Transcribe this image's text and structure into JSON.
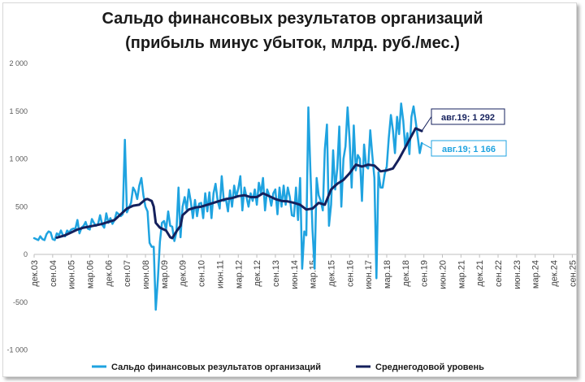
{
  "chart_data": {
    "type": "line",
    "title_line1": "Сальдо финансовых результатов организаций",
    "title_line2": "(прибыль минус убыток, млрд. руб./мес.)",
    "xlabel": "",
    "ylabel": "",
    "ylim": [
      -1000,
      2000
    ],
    "y_ticks": [
      -1000,
      -500,
      0,
      500,
      1000,
      1500,
      2000
    ],
    "y_tick_labels": [
      "-1 000",
      "-500",
      "0",
      "500",
      "1 000",
      "1 500",
      "2 000"
    ],
    "x_ticks": [
      {
        "date": "2003-12",
        "label": "дек.03"
      },
      {
        "date": "2004-09",
        "label": "сен.04"
      },
      {
        "date": "2005-06",
        "label": "июн.05"
      },
      {
        "date": "2006-03",
        "label": "мар.06"
      },
      {
        "date": "2006-12",
        "label": "дек.06"
      },
      {
        "date": "2007-09",
        "label": "сен.07"
      },
      {
        "date": "2008-06",
        "label": "июн.08"
      },
      {
        "date": "2009-03",
        "label": "мар.09"
      },
      {
        "date": "2009-12",
        "label": "дек.09"
      },
      {
        "date": "2010-09",
        "label": "сен.10"
      },
      {
        "date": "2011-06",
        "label": "июн.11"
      },
      {
        "date": "2012-03",
        "label": "мар.12"
      },
      {
        "date": "2012-12",
        "label": "дек.12"
      },
      {
        "date": "2013-09",
        "label": "сен.13"
      },
      {
        "date": "2014-06",
        "label": "июн.14"
      },
      {
        "date": "2015-03",
        "label": "мар.15"
      },
      {
        "date": "2015-12",
        "label": "дек.15"
      },
      {
        "date": "2016-09",
        "label": "сен.16"
      },
      {
        "date": "2017-06",
        "label": "июн.17"
      },
      {
        "date": "2018-03",
        "label": "мар.18"
      },
      {
        "date": "2018-12",
        "label": "дек.18"
      },
      {
        "date": "2019-09",
        "label": "сен.19"
      },
      {
        "date": "2020-06",
        "label": "июн.20"
      },
      {
        "date": "2021-03",
        "label": "мар.21"
      },
      {
        "date": "2021-12",
        "label": "дек.21"
      },
      {
        "date": "2022-09",
        "label": "сен.22"
      },
      {
        "date": "2023-06",
        "label": "июн.23"
      },
      {
        "date": "2024-03",
        "label": "мар.24"
      },
      {
        "date": "2024-12",
        "label": "дек.24"
      },
      {
        "date": "2025-09",
        "label": "сен.25"
      }
    ],
    "x_range": [
      "2003-12",
      "2025-12"
    ],
    "grid": false,
    "legend_position": "bottom",
    "series": [
      {
        "name": "Сальдо финансовых результатов организаций",
        "color": "#1fa3e0",
        "points": [
          [
            "2003-12",
            170
          ],
          [
            "2004-02",
            150
          ],
          [
            "2004-03",
            190
          ],
          [
            "2004-04",
            160
          ],
          [
            "2004-05",
            150
          ],
          [
            "2004-06",
            210
          ],
          [
            "2004-07",
            240
          ],
          [
            "2004-08",
            230
          ],
          [
            "2004-09",
            160
          ],
          [
            "2004-10",
            150
          ],
          [
            "2004-11",
            220
          ],
          [
            "2004-12",
            200
          ],
          [
            "2005-01",
            250
          ],
          [
            "2005-02",
            200
          ],
          [
            "2005-03",
            190
          ],
          [
            "2005-04",
            250
          ],
          [
            "2005-05",
            230
          ],
          [
            "2005-06",
            260
          ],
          [
            "2005-07",
            270
          ],
          [
            "2005-08",
            270
          ],
          [
            "2005-09",
            360
          ],
          [
            "2005-10",
            220
          ],
          [
            "2005-11",
            280
          ],
          [
            "2005-12",
            300
          ],
          [
            "2006-01",
            340
          ],
          [
            "2006-02",
            270
          ],
          [
            "2006-03",
            260
          ],
          [
            "2006-04",
            370
          ],
          [
            "2006-05",
            330
          ],
          [
            "2006-06",
            300
          ],
          [
            "2006-07",
            320
          ],
          [
            "2006-08",
            410
          ],
          [
            "2006-09",
            310
          ],
          [
            "2006-10",
            280
          ],
          [
            "2006-11",
            430
          ],
          [
            "2006-12",
            330
          ],
          [
            "2007-01",
            380
          ],
          [
            "2007-02",
            320
          ],
          [
            "2007-03",
            360
          ],
          [
            "2007-04",
            440
          ],
          [
            "2007-05",
            420
          ],
          [
            "2007-06",
            400
          ],
          [
            "2007-07",
            420
          ],
          [
            "2007-08",
            1200
          ],
          [
            "2007-09",
            440
          ],
          [
            "2007-10",
            490
          ],
          [
            "2007-11",
            540
          ],
          [
            "2007-12",
            700
          ],
          [
            "2008-01",
            660
          ],
          [
            "2008-02",
            580
          ],
          [
            "2008-03",
            720
          ],
          [
            "2008-04",
            800
          ],
          [
            "2008-05",
            620
          ],
          [
            "2008-06",
            500
          ],
          [
            "2008-07",
            450
          ],
          [
            "2008-08",
            120
          ],
          [
            "2008-09",
            80
          ],
          [
            "2008-10",
            80
          ],
          [
            "2008-11",
            -580
          ],
          [
            "2008-12",
            -260
          ],
          [
            "2009-01",
            130
          ],
          [
            "2009-02",
            330
          ],
          [
            "2009-03",
            350
          ],
          [
            "2009-04",
            260
          ],
          [
            "2009-05",
            450
          ],
          [
            "2009-06",
            300
          ],
          [
            "2009-07",
            290
          ],
          [
            "2009-08",
            140
          ],
          [
            "2009-09",
            230
          ],
          [
            "2009-10",
            700
          ],
          [
            "2009-11",
            180
          ],
          [
            "2009-12",
            500
          ],
          [
            "2010-01",
            600
          ],
          [
            "2010-02",
            470
          ],
          [
            "2010-03",
            680
          ],
          [
            "2010-04",
            550
          ],
          [
            "2010-05",
            380
          ],
          [
            "2010-06",
            570
          ],
          [
            "2010-07",
            400
          ],
          [
            "2010-08",
            530
          ],
          [
            "2010-09",
            540
          ],
          [
            "2010-10",
            380
          ],
          [
            "2010-11",
            640
          ],
          [
            "2010-12",
            450
          ],
          [
            "2011-01",
            650
          ],
          [
            "2011-02",
            380
          ],
          [
            "2011-03",
            640
          ],
          [
            "2011-04",
            740
          ],
          [
            "2011-05",
            560
          ],
          [
            "2011-06",
            480
          ],
          [
            "2011-07",
            820
          ],
          [
            "2011-08",
            560
          ],
          [
            "2011-09",
            580
          ],
          [
            "2011-10",
            450
          ],
          [
            "2011-11",
            670
          ],
          [
            "2011-12",
            500
          ],
          [
            "2012-01",
            720
          ],
          [
            "2012-02",
            600
          ],
          [
            "2012-03",
            690
          ],
          [
            "2012-04",
            820
          ],
          [
            "2012-05",
            460
          ],
          [
            "2012-06",
            700
          ],
          [
            "2012-07",
            600
          ],
          [
            "2012-08",
            500
          ],
          [
            "2012-09",
            640
          ],
          [
            "2012-10",
            560
          ],
          [
            "2012-11",
            680
          ],
          [
            "2012-12",
            520
          ],
          [
            "2013-01",
            750
          ],
          [
            "2013-02",
            640
          ],
          [
            "2013-03",
            800
          ],
          [
            "2013-04",
            460
          ],
          [
            "2013-05",
            680
          ],
          [
            "2013-06",
            620
          ],
          [
            "2013-07",
            510
          ],
          [
            "2013-08",
            640
          ],
          [
            "2013-09",
            680
          ],
          [
            "2013-10",
            420
          ],
          [
            "2013-11",
            700
          ],
          [
            "2013-12",
            500
          ],
          [
            "2014-01",
            720
          ],
          [
            "2014-02",
            520
          ],
          [
            "2014-03",
            700
          ],
          [
            "2014-04",
            600
          ],
          [
            "2014-05",
            410
          ],
          [
            "2014-06",
            400
          ],
          [
            "2014-07",
            700
          ],
          [
            "2014-08",
            360
          ],
          [
            "2014-09",
            800
          ],
          [
            "2014-10",
            -150
          ],
          [
            "2014-11",
            240
          ],
          [
            "2014-12",
            200
          ],
          [
            "2015-01",
            1540
          ],
          [
            "2015-02",
            860
          ],
          [
            "2015-03",
            260
          ],
          [
            "2015-04",
            -150
          ],
          [
            "2015-05",
            800
          ],
          [
            "2015-06",
            620
          ],
          [
            "2015-07",
            560
          ],
          [
            "2015-08",
            460
          ],
          [
            "2015-09",
            1100
          ],
          [
            "2015-10",
            1360
          ],
          [
            "2015-11",
            300
          ],
          [
            "2015-12",
            520
          ],
          [
            "2016-01",
            1090
          ],
          [
            "2016-02",
            680
          ],
          [
            "2016-03",
            900
          ],
          [
            "2016-04",
            1340
          ],
          [
            "2016-05",
            500
          ],
          [
            "2016-06",
            1000
          ],
          [
            "2016-07",
            1130
          ],
          [
            "2016-08",
            1540
          ],
          [
            "2016-09",
            1200
          ],
          [
            "2016-10",
            700
          ],
          [
            "2016-11",
            1350
          ],
          [
            "2016-12",
            880
          ],
          [
            "2017-01",
            1040
          ],
          [
            "2017-02",
            1000
          ],
          [
            "2017-03",
            560
          ],
          [
            "2017-04",
            1150
          ],
          [
            "2017-05",
            920
          ],
          [
            "2017-06",
            900
          ],
          [
            "2017-07",
            1300
          ],
          [
            "2017-08",
            1040
          ],
          [
            "2017-09",
            800
          ],
          [
            "2017-10",
            -250
          ],
          [
            "2017-11",
            860
          ],
          [
            "2017-12",
            700
          ],
          [
            "2018-01",
            700
          ],
          [
            "2018-02",
            840
          ],
          [
            "2018-03",
            920
          ],
          [
            "2018-04",
            1220
          ],
          [
            "2018-05",
            1460
          ],
          [
            "2018-06",
            1300
          ],
          [
            "2018-07",
            1060
          ],
          [
            "2018-08",
            1440
          ],
          [
            "2018-09",
            1260
          ],
          [
            "2018-10",
            1580
          ],
          [
            "2018-11",
            1400
          ],
          [
            "2018-12",
            1110
          ],
          [
            "2019-01",
            1270
          ],
          [
            "2019-02",
            1050
          ],
          [
            "2019-03",
            1440
          ],
          [
            "2019-04",
            1550
          ],
          [
            "2019-05",
            1400
          ],
          [
            "2019-06",
            1240
          ],
          [
            "2019-07",
            1060
          ],
          [
            "2019-08",
            1166
          ]
        ]
      },
      {
        "name": "Среднегодовой уровень",
        "color": "#14205c",
        "points": [
          [
            "2004-11",
            175
          ],
          [
            "2005-03",
            200
          ],
          [
            "2005-06",
            230
          ],
          [
            "2005-09",
            260
          ],
          [
            "2005-12",
            280
          ],
          [
            "2006-06",
            305
          ],
          [
            "2006-09",
            320
          ],
          [
            "2006-12",
            340
          ],
          [
            "2007-03",
            360
          ],
          [
            "2007-07",
            440
          ],
          [
            "2007-09",
            480
          ],
          [
            "2007-12",
            510
          ],
          [
            "2008-03",
            520
          ],
          [
            "2008-06",
            575
          ],
          [
            "2008-07",
            580
          ],
          [
            "2008-09",
            560
          ],
          [
            "2008-10",
            500
          ],
          [
            "2008-11",
            330
          ],
          [
            "2009-01",
            280
          ],
          [
            "2009-04",
            250
          ],
          [
            "2009-06",
            180
          ],
          [
            "2009-07",
            170
          ],
          [
            "2009-09",
            240
          ],
          [
            "2009-11",
            300
          ],
          [
            "2009-12",
            410
          ],
          [
            "2010-03",
            470
          ],
          [
            "2010-06",
            490
          ],
          [
            "2010-09",
            500
          ],
          [
            "2010-12",
            520
          ],
          [
            "2011-03",
            540
          ],
          [
            "2011-06",
            560
          ],
          [
            "2011-09",
            580
          ],
          [
            "2011-12",
            590
          ],
          [
            "2012-03",
            610
          ],
          [
            "2012-06",
            620
          ],
          [
            "2012-09",
            600
          ],
          [
            "2012-12",
            600
          ],
          [
            "2013-03",
            640
          ],
          [
            "2013-06",
            610
          ],
          [
            "2013-09",
            580
          ],
          [
            "2013-12",
            560
          ],
          [
            "2014-03",
            555
          ],
          [
            "2014-06",
            540
          ],
          [
            "2014-09",
            520
          ],
          [
            "2014-12",
            470
          ],
          [
            "2015-03",
            480
          ],
          [
            "2015-06",
            540
          ],
          [
            "2015-09",
            520
          ],
          [
            "2015-12",
            680
          ],
          [
            "2016-03",
            740
          ],
          [
            "2016-06",
            780
          ],
          [
            "2016-09",
            850
          ],
          [
            "2016-12",
            940
          ],
          [
            "2017-03",
            920
          ],
          [
            "2017-06",
            940
          ],
          [
            "2017-09",
            930
          ],
          [
            "2017-12",
            870
          ],
          [
            "2018-03",
            880
          ],
          [
            "2018-06",
            900
          ],
          [
            "2018-09",
            1000
          ],
          [
            "2018-12",
            1120
          ],
          [
            "2019-03",
            1240
          ],
          [
            "2019-05",
            1320
          ],
          [
            "2019-08",
            1292
          ]
        ]
      }
    ],
    "annotations": [
      {
        "label": "авг.19; 1 292",
        "series": "Среднегодовой уровень",
        "date": "2019-08",
        "value": 1292
      },
      {
        "label": "авг.19;  1 166",
        "series": "Сальдо финансовых результатов организаций",
        "date": "2019-08",
        "value": 1166
      }
    ]
  }
}
